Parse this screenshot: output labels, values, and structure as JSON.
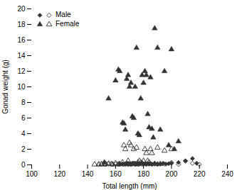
{
  "chart_data": {
    "type": "scatter",
    "xlabel": "Total length (mm)",
    "ylabel": "Gonad weight (g)",
    "xlim": [
      100,
      240
    ],
    "ylim": [
      0,
      20
    ],
    "xticks": [
      100,
      120,
      140,
      160,
      180,
      200,
      220,
      240
    ],
    "yticks": [
      0,
      2,
      4,
      6,
      8,
      10,
      12,
      14,
      16,
      18,
      20
    ],
    "legend": "upper left",
    "series": [
      {
        "marker": "filled_diamond",
        "color": "#333333",
        "x": [
          163,
          165,
          167,
          168,
          169,
          170,
          171,
          172,
          173,
          174,
          175,
          176,
          177,
          178,
          179,
          180,
          181,
          182,
          183,
          184,
          185,
          186,
          188,
          190,
          192,
          194,
          196,
          198,
          200,
          205,
          210,
          215,
          218
        ],
        "y": [
          0.1,
          0.1,
          0.1,
          0.1,
          0.2,
          0.15,
          0.1,
          0.15,
          0.2,
          0.1,
          0.15,
          0.2,
          0.1,
          0.15,
          0.2,
          0.1,
          0.15,
          0.1,
          0.2,
          0.1,
          0.15,
          0.1,
          0.2,
          0.15,
          0.1,
          0.2,
          0.1,
          0.15,
          0.2,
          0.3,
          0.5,
          0.8,
          0.2
        ]
      },
      {
        "name": "Male",
        "marker": "open_diamond",
        "color": "#333333",
        "x": [
          148,
          150,
          152,
          153,
          155,
          157,
          158,
          160,
          162,
          163,
          165,
          166,
          167,
          168,
          169,
          170,
          171,
          172,
          173,
          174,
          175,
          176,
          177,
          178,
          179,
          180,
          182,
          184,
          186,
          188,
          190,
          195,
          200,
          205,
          210,
          215,
          220
        ],
        "y": [
          0.05,
          0.05,
          0.1,
          0.05,
          0.1,
          0.1,
          0.05,
          0.1,
          0.05,
          0.1,
          0.1,
          0.05,
          0.1,
          0.15,
          0.05,
          0.1,
          0.05,
          0.1,
          0.15,
          0.05,
          0.1,
          0.05,
          0.1,
          0.15,
          0.05,
          0.1,
          0.05,
          0.1,
          0.05,
          0.1,
          0.05,
          0.1,
          0.3,
          0.05,
          0.5,
          0.2,
          0.05
        ]
      },
      {
        "marker": "filled_triangle",
        "color": "#333333",
        "x": [
          152,
          155,
          160,
          162,
          163,
          165,
          166,
          167,
          168,
          169,
          170,
          171,
          172,
          173,
          174,
          175,
          176,
          177,
          178,
          179,
          180,
          181,
          182,
          183,
          184,
          185,
          186,
          187,
          188,
          190,
          192,
          195,
          198,
          200,
          202,
          205
        ],
        "y": [
          0.3,
          8.5,
          10.8,
          12.2,
          12.0,
          5.4,
          5.3,
          4.5,
          11.0,
          11.5,
          10.0,
          10.5,
          6.2,
          6.0,
          10.0,
          15.0,
          4.0,
          3.8,
          8.5,
          11.5,
          10.5,
          12.0,
          11.5,
          6.5,
          4.8,
          11.2,
          4.6,
          3.5,
          17.5,
          15.0,
          4.5,
          12.0,
          2.5,
          14.8,
          2.0,
          3.0
        ]
      },
      {
        "name": "Female",
        "marker": "open_triangle",
        "color": "#333333",
        "x": [
          145,
          148,
          150,
          152,
          153,
          155,
          157,
          158,
          160,
          162,
          163,
          165,
          166,
          167,
          168,
          169,
          170,
          171,
          172,
          173,
          174,
          175,
          176,
          177,
          178,
          179,
          180,
          181,
          182,
          183,
          184,
          185,
          186,
          188,
          190,
          192,
          195,
          200
        ],
        "y": [
          0.05,
          0.05,
          0.1,
          0.05,
          0.1,
          0.15,
          0.1,
          0.05,
          0.2,
          0.05,
          0.1,
          0.3,
          2.5,
          2.0,
          0.1,
          0.5,
          2.8,
          2.5,
          0.1,
          2.0,
          0.1,
          2.2,
          0.3,
          0.5,
          0.3,
          0.2,
          0.5,
          2.0,
          1.5,
          0.5,
          0.3,
          2.0,
          1.5,
          0.1,
          2.2,
          0.1,
          1.8,
          2.0
        ]
      }
    ]
  }
}
